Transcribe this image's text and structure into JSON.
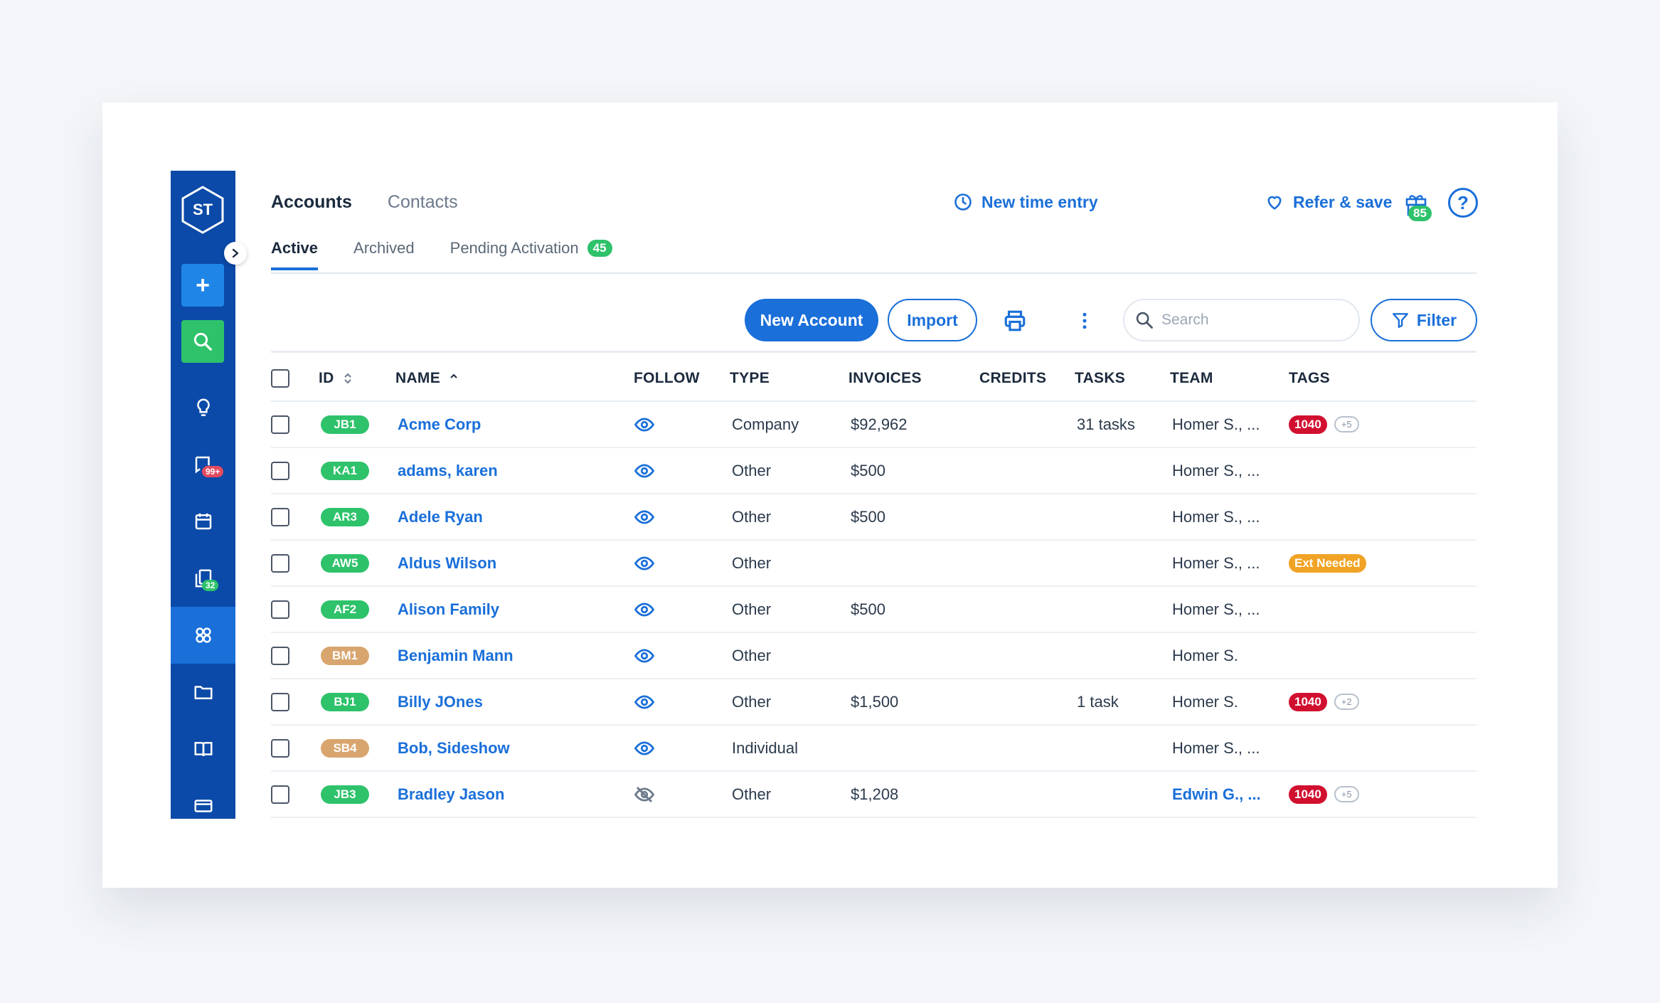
{
  "sidebar": {
    "logo_text": "ST",
    "add_label": "+",
    "notifications_badge": "99+",
    "tasks_badge": "32"
  },
  "header": {
    "tabs": [
      {
        "label": "Accounts",
        "active": true
      },
      {
        "label": "Contacts",
        "active": false
      }
    ],
    "time_entry_label": "New time entry",
    "refer_label": "Refer & save",
    "gift_badge": "85",
    "help_label": "?"
  },
  "subtabs": [
    {
      "label": "Active",
      "active": true
    },
    {
      "label": "Archived",
      "active": false
    },
    {
      "label": "Pending Activation",
      "active": false,
      "count": "45"
    }
  ],
  "toolbar": {
    "new_account_label": "New Account",
    "import_label": "Import",
    "search_placeholder": "Search",
    "filter_label": "Filter"
  },
  "table": {
    "columns": {
      "id": "ID",
      "name": "NAME",
      "follow": "FOLLOW",
      "type": "TYPE",
      "invoices": "INVOICES",
      "credits": "CREDITS",
      "tasks": "TASKS",
      "team": "TEAM",
      "tags": "TAGS"
    },
    "rows": [
      {
        "id": "JB1",
        "id_color": "#2ec26b",
        "name": "Acme Corp",
        "following": true,
        "type": "Company",
        "invoices": "$92,962",
        "credits": "",
        "tasks": "31 tasks",
        "team": "Homer S., ...",
        "team_link": false,
        "tag": "1040",
        "tag_style": "red",
        "tag_more": "+5"
      },
      {
        "id": "KA1",
        "id_color": "#2ec26b",
        "name": "adams, karen",
        "following": true,
        "type": "Other",
        "invoices": "$500",
        "credits": "",
        "tasks": "",
        "team": "Homer S., ...",
        "team_link": false,
        "tag": "",
        "tag_style": "",
        "tag_more": ""
      },
      {
        "id": "AR3",
        "id_color": "#2ec26b",
        "name": "Adele Ryan",
        "following": true,
        "type": "Other",
        "invoices": "$500",
        "credits": "",
        "tasks": "",
        "team": "Homer S., ...",
        "team_link": false,
        "tag": "",
        "tag_style": "",
        "tag_more": ""
      },
      {
        "id": "AW5",
        "id_color": "#2ec26b",
        "name": "Aldus Wilson",
        "following": true,
        "type": "Other",
        "invoices": "",
        "credits": "",
        "tasks": "",
        "team": "Homer S., ...",
        "team_link": false,
        "tag": "Ext Needed",
        "tag_style": "yellow",
        "tag_more": ""
      },
      {
        "id": "AF2",
        "id_color": "#2ec26b",
        "name": "Alison Family",
        "following": true,
        "type": "Other",
        "invoices": "$500",
        "credits": "",
        "tasks": "",
        "team": "Homer S., ...",
        "team_link": false,
        "tag": "",
        "tag_style": "",
        "tag_more": ""
      },
      {
        "id": "BM1",
        "id_color": "#d9a56e",
        "name": "Benjamin Mann",
        "following": true,
        "type": "Other",
        "invoices": "",
        "credits": "",
        "tasks": "",
        "team": "Homer S.",
        "team_link": false,
        "tag": "",
        "tag_style": "",
        "tag_more": ""
      },
      {
        "id": "BJ1",
        "id_color": "#2ec26b",
        "name": "Billy JOnes",
        "following": true,
        "type": "Other",
        "invoices": "$1,500",
        "credits": "",
        "tasks": "1 task",
        "team": "Homer S.",
        "team_link": false,
        "tag": "1040",
        "tag_style": "red",
        "tag_more": "+2"
      },
      {
        "id": "SB4",
        "id_color": "#d9a56e",
        "name": "Bob, Sideshow",
        "following": true,
        "type": "Individual",
        "invoices": "",
        "credits": "",
        "tasks": "",
        "team": "Homer S., ...",
        "team_link": false,
        "tag": "",
        "tag_style": "",
        "tag_more": ""
      },
      {
        "id": "JB3",
        "id_color": "#2ec26b",
        "name": "Bradley Jason",
        "following": false,
        "type": "Other",
        "invoices": "$1,208",
        "credits": "",
        "tasks": "",
        "team": "Edwin G., ...",
        "team_link": true,
        "tag": "1040",
        "tag_style": "red",
        "tag_more": "+5"
      }
    ]
  }
}
